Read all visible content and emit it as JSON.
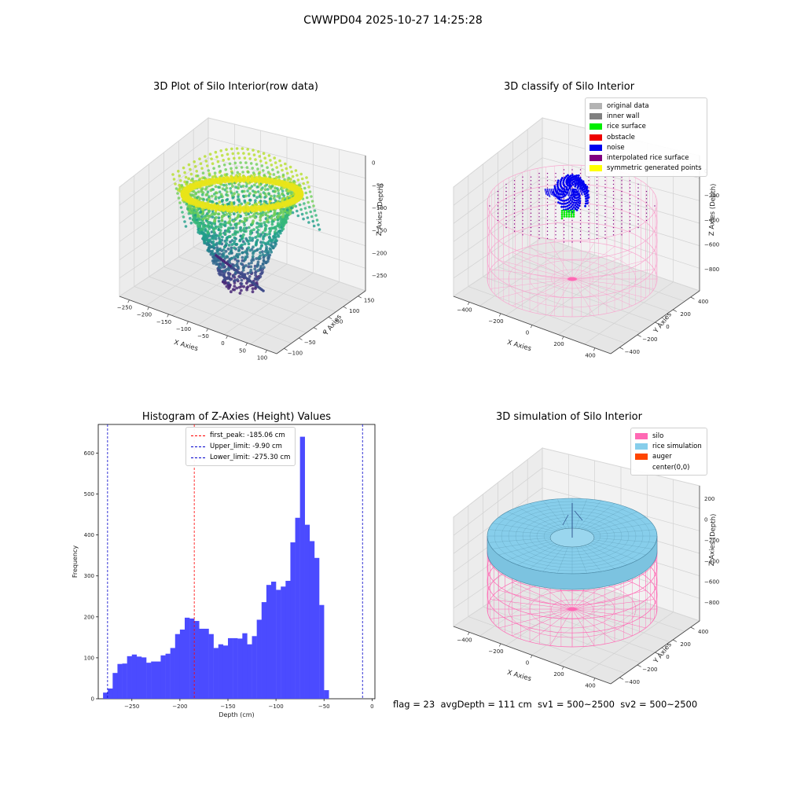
{
  "figure": {
    "suptitle": "CWWPD04 2025-10-27 14:25:28",
    "footer": "flag = 23  avgDepth = 111 cm  sv1 = 500~2500  sv2 = 500~2500"
  },
  "chart_data": [
    {
      "type": "scatter",
      "title": "3D Plot of Silo Interior(row data)",
      "xlabel": "X Axies",
      "ylabel": "Y Axies",
      "zlabel": "Z Axies (Depth)",
      "xlim": [
        -250,
        130
      ],
      "ylim": [
        -120,
        170
      ],
      "zlim": [
        -290,
        10
      ],
      "xticks": [
        "−250",
        "−200",
        "−150",
        "−100",
        "−50",
        "0",
        "50",
        "100"
      ],
      "yticks": [
        "−100",
        "−50",
        "0",
        "50",
        "100",
        "150"
      ],
      "zticks": [
        "0",
        "−50",
        "−100",
        "−150",
        "−200",
        "−250"
      ],
      "colormap": "viridis",
      "colors": {
        "high": "#f0e516",
        "mid": "#2b8a8d",
        "low": "#482573"
      }
    },
    {
      "type": "scatter",
      "title": "3D classify of Silo Interior",
      "xlabel": "X Axies",
      "ylabel": "Y Axies",
      "zlabel": "Z Axies (Depth)",
      "xlim": [
        -550,
        550
      ],
      "ylim": [
        -550,
        550
      ],
      "zlim": [
        -950,
        250
      ],
      "xticks": [
        "−400",
        "−200",
        "0",
        "200",
        "400"
      ],
      "yticks": [
        "−400",
        "−200",
        "0",
        "200",
        "400"
      ],
      "zticks": [
        "0",
        "−200",
        "−400",
        "−600",
        "−800"
      ],
      "legend": [
        {
          "label": "original data",
          "color": "#b3b3b3"
        },
        {
          "label": "inner wall",
          "color": "#808080"
        },
        {
          "label": "rice surface",
          "color": "#00ee00"
        },
        {
          "label": "obstacle",
          "color": "#ee0000"
        },
        {
          "label": "noise",
          "color": "#0000ee"
        },
        {
          "label": "interpolated rice surface",
          "color": "#800080"
        },
        {
          "label": "symmetric generated points",
          "color": "#ffff00"
        }
      ],
      "legend_position": "top-right",
      "wire_color": "#f7a8cf"
    },
    {
      "type": "bar",
      "title": "Histogram of Z-Axies (Height) Values",
      "xlabel": "Depth (cm)",
      "ylabel": "Frequency",
      "xlim": [
        -285,
        3
      ],
      "ylim": [
        0,
        670
      ],
      "bin_start": -280,
      "bin_width": 5,
      "xticks": [
        -250,
        -200,
        -150,
        -100,
        -50,
        0
      ],
      "yticks": [
        0,
        100,
        200,
        300,
        400,
        500,
        600
      ],
      "values": [
        15,
        25,
        63,
        85,
        86,
        104,
        108,
        103,
        101,
        88,
        91,
        91,
        106,
        110,
        124,
        158,
        169,
        198,
        196,
        190,
        171,
        171,
        158,
        124,
        133,
        130,
        148,
        148,
        147,
        160,
        133,
        153,
        193,
        236,
        278,
        286,
        266,
        274,
        288,
        382,
        442,
        640,
        425,
        385,
        344,
        229,
        21
      ],
      "bar_color": "#4b4bff",
      "vlines": [
        {
          "label": "first_peak: -185.06 cm",
          "x": -185.06,
          "color": "#ff0000"
        },
        {
          "label": "Upper_limit: -9.90 cm",
          "x": -9.9,
          "color": "#0000cc"
        },
        {
          "label": "Lower_limit: -275.30 cm",
          "x": -275.3,
          "color": "#0000cc"
        }
      ],
      "legend_position": "upper-center"
    },
    {
      "type": "area",
      "title": "3D simulation of Silo Interior",
      "xlabel": "X Axies",
      "ylabel": "Y Axies",
      "zlabel": "Z Axies (Depth)",
      "xlim": [
        -550,
        550
      ],
      "ylim": [
        -550,
        550
      ],
      "zlim": [
        -950,
        300
      ],
      "xticks": [
        "−400",
        "−200",
        "0",
        "200",
        "400"
      ],
      "yticks": [
        "−400",
        "−200",
        "0",
        "200",
        "400"
      ],
      "zticks": [
        "200",
        "0",
        "−200",
        "−400",
        "−600",
        "−800"
      ],
      "legend": [
        {
          "label": "silo",
          "color": "#ff69b4"
        },
        {
          "label": "rice simulation",
          "color": "#87ceeb"
        },
        {
          "label": "auger",
          "color": "#ff4500"
        },
        {
          "label": "center(0,0)",
          "color": "#ffffff"
        }
      ],
      "legend_position": "top-right"
    }
  ]
}
